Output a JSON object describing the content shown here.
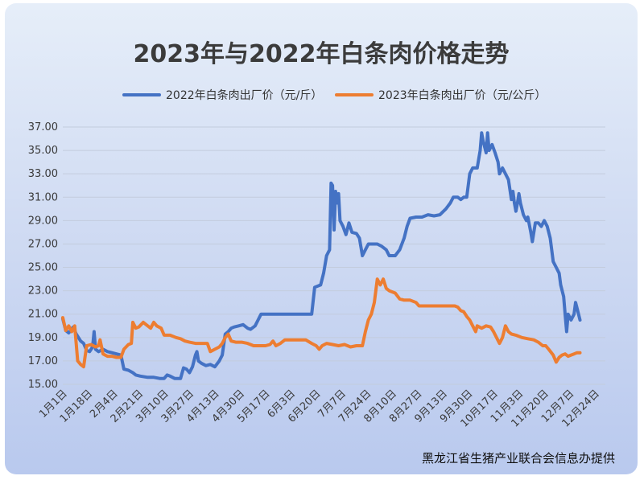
{
  "chart_data": {
    "type": "line",
    "title": "2023年与2022年白条肉价格走势",
    "source": "黑龙江省生猪产业联合会信息办提供",
    "ylim": [
      15,
      37
    ],
    "yticks": [
      "37.00",
      "35.00",
      "33.00",
      "31.00",
      "29.00",
      "27.00",
      "25.00",
      "23.00",
      "21.00",
      "19.00",
      "17.00",
      "15.00"
    ],
    "grid": true,
    "legend_position": "top",
    "x_ticks": [
      "1月1日",
      "1月18日",
      "2月4日",
      "2月21日",
      "3月10日",
      "3月27日",
      "4月13日",
      "4月30日",
      "5月17日",
      "6月3日",
      "6月20日",
      "7月7日",
      "7月24日",
      "8月10日",
      "8月27日",
      "9月13日",
      "9月30日",
      "10月17日",
      "11月3日",
      "11月20日",
      "12月7日",
      "12月24日"
    ],
    "x_day_range": [
      1,
      365
    ],
    "series": [
      {
        "name": "2022年白条肉出厂价（元/斤）",
        "color": "#4472C4",
        "points": [
          [
            1,
            20.6
          ],
          [
            3,
            19.6
          ],
          [
            5,
            19.4
          ],
          [
            8,
            19.9
          ],
          [
            10,
            19.3
          ],
          [
            13,
            18.7
          ],
          [
            15,
            18.5
          ],
          [
            17,
            17.9
          ],
          [
            19,
            17.8
          ],
          [
            21,
            18.2
          ],
          [
            22,
            19.5
          ],
          [
            23,
            18.0
          ],
          [
            25,
            17.8
          ],
          [
            28,
            18.0
          ],
          [
            31,
            17.8
          ],
          [
            34,
            17.7
          ],
          [
            37,
            17.6
          ],
          [
            40,
            17.5
          ],
          [
            42,
            16.3
          ],
          [
            45,
            16.2
          ],
          [
            48,
            16.0
          ],
          [
            50,
            15.8
          ],
          [
            53,
            15.7
          ],
          [
            58,
            15.6
          ],
          [
            62,
            15.6
          ],
          [
            66,
            15.5
          ],
          [
            69,
            15.5
          ],
          [
            71,
            15.8
          ],
          [
            73,
            15.7
          ],
          [
            76,
            15.5
          ],
          [
            80,
            15.5
          ],
          [
            82,
            16.4
          ],
          [
            84,
            16.3
          ],
          [
            86,
            16.0
          ],
          [
            88,
            16.5
          ],
          [
            90,
            17.5
          ],
          [
            91,
            17.8
          ],
          [
            92,
            17.0
          ],
          [
            94,
            16.8
          ],
          [
            97,
            16.6
          ],
          [
            100,
            16.7
          ],
          [
            103,
            16.5
          ],
          [
            106,
            17.0
          ],
          [
            108,
            17.5
          ],
          [
            110,
            19.3
          ],
          [
            112,
            19.5
          ],
          [
            114,
            19.8
          ],
          [
            116,
            19.9
          ],
          [
            119,
            20.0
          ],
          [
            122,
            20.1
          ],
          [
            125,
            19.8
          ],
          [
            127,
            19.7
          ],
          [
            130,
            20.0
          ],
          [
            132,
            20.5
          ],
          [
            134,
            21.0
          ],
          [
            138,
            21.0
          ],
          [
            145,
            21.0
          ],
          [
            150,
            21.0
          ],
          [
            155,
            21.0
          ],
          [
            160,
            21.0
          ],
          [
            165,
            21.0
          ],
          [
            168,
            21.0
          ],
          [
            170,
            23.3
          ],
          [
            174,
            23.5
          ],
          [
            176,
            24.5
          ],
          [
            178,
            26.0
          ],
          [
            180,
            26.5
          ],
          [
            181,
            32.2
          ],
          [
            182,
            32.0
          ],
          [
            183,
            28.2
          ],
          [
            184,
            31.5
          ],
          [
            185,
            30.5
          ],
          [
            186,
            31.3
          ],
          [
            187,
            29.0
          ],
          [
            189,
            28.5
          ],
          [
            191,
            27.8
          ],
          [
            193,
            28.8
          ],
          [
            195,
            28.0
          ],
          [
            198,
            27.9
          ],
          [
            200,
            27.5
          ],
          [
            202,
            26.0
          ],
          [
            204,
            26.5
          ],
          [
            206,
            27.0
          ],
          [
            208,
            27.0
          ],
          [
            212,
            27.0
          ],
          [
            215,
            26.8
          ],
          [
            218,
            26.5
          ],
          [
            220,
            26.0
          ],
          [
            224,
            26.0
          ],
          [
            227,
            26.5
          ],
          [
            230,
            27.5
          ],
          [
            232,
            28.5
          ],
          [
            234,
            29.2
          ],
          [
            238,
            29.3
          ],
          [
            242,
            29.3
          ],
          [
            246,
            29.5
          ],
          [
            250,
            29.4
          ],
          [
            254,
            29.5
          ],
          [
            258,
            30.0
          ],
          [
            261,
            30.5
          ],
          [
            263,
            31.0
          ],
          [
            266,
            31.0
          ],
          [
            268,
            30.8
          ],
          [
            270,
            31.0
          ],
          [
            272,
            31.0
          ],
          [
            274,
            33.0
          ],
          [
            276,
            33.5
          ],
          [
            279,
            33.5
          ],
          [
            281,
            35.0
          ],
          [
            282,
            36.5
          ],
          [
            283,
            35.8
          ],
          [
            285,
            34.8
          ],
          [
            286,
            36.5
          ],
          [
            287,
            35.0
          ],
          [
            289,
            35.5
          ],
          [
            291,
            34.8
          ],
          [
            293,
            34.0
          ],
          [
            294,
            33.0
          ],
          [
            296,
            33.5
          ],
          [
            298,
            33.0
          ],
          [
            300,
            32.5
          ],
          [
            302,
            30.8
          ],
          [
            303,
            31.5
          ],
          [
            304,
            30.5
          ],
          [
            305,
            29.8
          ],
          [
            306,
            30.5
          ],
          [
            307,
            31.3
          ],
          [
            308,
            30.5
          ],
          [
            310,
            29.5
          ],
          [
            312,
            29.0
          ],
          [
            313,
            29.3
          ],
          [
            315,
            28.0
          ],
          [
            316,
            27.2
          ],
          [
            318,
            28.8
          ],
          [
            320,
            28.8
          ],
          [
            322,
            28.5
          ],
          [
            324,
            29.0
          ],
          [
            326,
            28.5
          ],
          [
            328,
            27.5
          ],
          [
            330,
            25.5
          ],
          [
            332,
            25.0
          ],
          [
            334,
            24.5
          ],
          [
            335,
            23.5
          ],
          [
            337,
            22.5
          ],
          [
            338,
            21.0
          ],
          [
            339,
            19.5
          ],
          [
            340,
            21.0
          ],
          [
            342,
            20.5
          ],
          [
            344,
            21.0
          ],
          [
            345,
            22.0
          ],
          [
            347,
            21.0
          ],
          [
            348,
            20.5
          ]
        ]
      },
      {
        "name": "2023年白条肉出厂价（元/公斤）",
        "color": "#ED7D31",
        "points": [
          [
            1,
            20.7
          ],
          [
            3,
            19.6
          ],
          [
            5,
            20.0
          ],
          [
            7,
            19.5
          ],
          [
            9,
            20.0
          ],
          [
            11,
            17.0
          ],
          [
            13,
            16.7
          ],
          [
            15,
            16.5
          ],
          [
            17,
            18.3
          ],
          [
            20,
            18.4
          ],
          [
            23,
            18.2
          ],
          [
            25,
            18.3
          ],
          [
            26,
            18.8
          ],
          [
            28,
            17.6
          ],
          [
            31,
            17.4
          ],
          [
            34,
            17.4
          ],
          [
            37,
            17.3
          ],
          [
            40,
            17.3
          ],
          [
            42,
            18.0
          ],
          [
            45,
            18.4
          ],
          [
            47,
            18.5
          ],
          [
            48,
            20.3
          ],
          [
            50,
            19.8
          ],
          [
            52,
            19.9
          ],
          [
            55,
            20.3
          ],
          [
            58,
            20.0
          ],
          [
            60,
            19.8
          ],
          [
            62,
            20.3
          ],
          [
            64,
            20.0
          ],
          [
            67,
            19.8
          ],
          [
            69,
            19.2
          ],
          [
            73,
            19.2
          ],
          [
            77,
            19.0
          ],
          [
            80,
            18.9
          ],
          [
            83,
            18.7
          ],
          [
            86,
            18.6
          ],
          [
            90,
            18.5
          ],
          [
            94,
            18.5
          ],
          [
            98,
            18.5
          ],
          [
            100,
            17.8
          ],
          [
            103,
            18.0
          ],
          [
            106,
            18.2
          ],
          [
            108,
            18.5
          ],
          [
            110,
            19.0
          ],
          [
            112,
            19.3
          ],
          [
            114,
            18.7
          ],
          [
            117,
            18.6
          ],
          [
            121,
            18.6
          ],
          [
            125,
            18.5
          ],
          [
            129,
            18.3
          ],
          [
            133,
            18.3
          ],
          [
            137,
            18.3
          ],
          [
            140,
            18.4
          ],
          [
            142,
            18.7
          ],
          [
            144,
            18.3
          ],
          [
            147,
            18.5
          ],
          [
            150,
            18.8
          ],
          [
            155,
            18.8
          ],
          [
            160,
            18.8
          ],
          [
            164,
            18.8
          ],
          [
            168,
            18.5
          ],
          [
            171,
            18.3
          ],
          [
            173,
            18.0
          ],
          [
            175,
            18.3
          ],
          [
            178,
            18.5
          ],
          [
            182,
            18.4
          ],
          [
            186,
            18.3
          ],
          [
            190,
            18.4
          ],
          [
            194,
            18.2
          ],
          [
            198,
            18.3
          ],
          [
            202,
            18.3
          ],
          [
            204,
            19.5
          ],
          [
            206,
            20.5
          ],
          [
            208,
            21.0
          ],
          [
            210,
            22.0
          ],
          [
            212,
            24.0
          ],
          [
            214,
            23.5
          ],
          [
            216,
            24.0
          ],
          [
            218,
            23.2
          ],
          [
            220,
            23.0
          ],
          [
            224,
            22.8
          ],
          [
            227,
            22.3
          ],
          [
            230,
            22.2
          ],
          [
            234,
            22.2
          ],
          [
            238,
            22.0
          ],
          [
            240,
            21.7
          ],
          [
            244,
            21.7
          ],
          [
            248,
            21.7
          ],
          [
            252,
            21.7
          ],
          [
            256,
            21.7
          ],
          [
            260,
            21.7
          ],
          [
            264,
            21.7
          ],
          [
            266,
            21.6
          ],
          [
            268,
            21.3
          ],
          [
            270,
            21.2
          ],
          [
            272,
            20.8
          ],
          [
            274,
            20.5
          ],
          [
            276,
            20.0
          ],
          [
            278,
            19.5
          ],
          [
            279,
            20.0
          ],
          [
            282,
            19.8
          ],
          [
            285,
            20.0
          ],
          [
            288,
            19.9
          ],
          [
            290,
            19.5
          ],
          [
            292,
            19.0
          ],
          [
            294,
            18.5
          ],
          [
            296,
            19.0
          ],
          [
            298,
            20.0
          ],
          [
            300,
            19.5
          ],
          [
            302,
            19.3
          ],
          [
            305,
            19.2
          ],
          [
            309,
            19.0
          ],
          [
            313,
            18.9
          ],
          [
            317,
            18.8
          ],
          [
            320,
            18.6
          ],
          [
            323,
            18.3
          ],
          [
            325,
            18.3
          ],
          [
            327,
            18.0
          ],
          [
            330,
            17.5
          ],
          [
            332,
            16.9
          ],
          [
            334,
            17.3
          ],
          [
            336,
            17.5
          ],
          [
            338,
            17.6
          ],
          [
            340,
            17.4
          ],
          [
            342,
            17.5
          ],
          [
            344,
            17.6
          ],
          [
            346,
            17.7
          ],
          [
            348,
            17.7
          ]
        ]
      }
    ]
  }
}
